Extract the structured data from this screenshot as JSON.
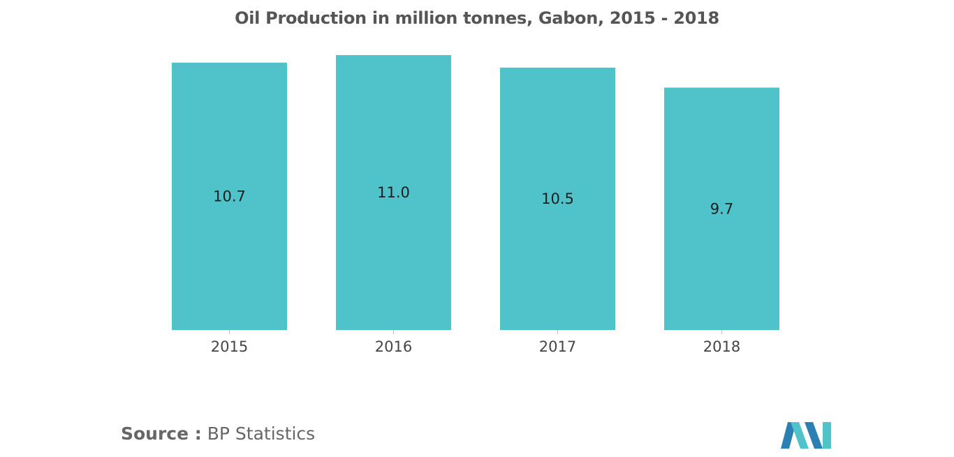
{
  "chart_data": {
    "type": "bar",
    "title": "Oil Production in million tonnes, Gabon, 2015 - 2018",
    "categories": [
      "2015",
      "2016",
      "2017",
      "2018"
    ],
    "values": [
      10.7,
      11.0,
      10.5,
      9.7
    ],
    "value_labels": [
      "10.7",
      "11.0",
      "10.5",
      "9.7"
    ],
    "xlabel": "",
    "ylabel": "",
    "ylim": [
      0,
      11.0
    ],
    "grid": false,
    "legend": "none",
    "bar_color": "#4fc3c9"
  },
  "source": {
    "key": "Source :",
    "value": "BP Statistics"
  },
  "logo": {
    "icon": "mordor-intelligence-logo",
    "colors": [
      "#2a7fb3",
      "#4fc3c9"
    ]
  }
}
